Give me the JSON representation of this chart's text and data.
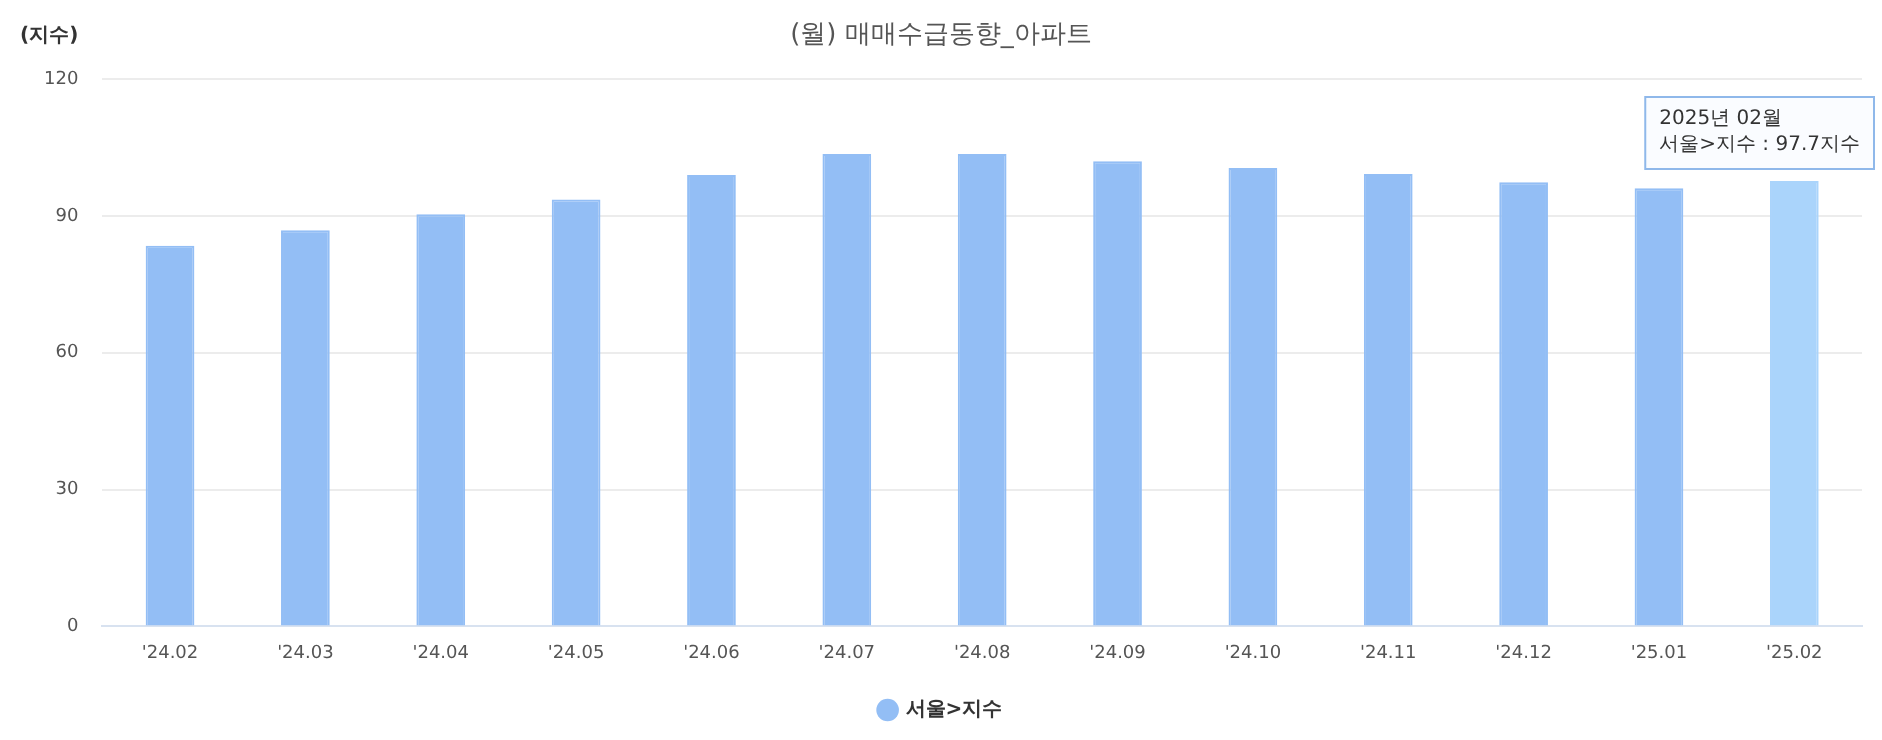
{
  "chart_data": {
    "type": "bar",
    "title": "(월) 매매수급동향_아파트",
    "ylabel": "(지수)",
    "categories": [
      "'24.02",
      "'24.03",
      "'24.04",
      "'24.05",
      "'24.06",
      "'24.07",
      "'24.08",
      "'24.09",
      "'24.10",
      "'24.11",
      "'24.12",
      "'25.01",
      "'25.02"
    ],
    "series": [
      {
        "name": "서울>지수",
        "color": "#93bef5",
        "colors": [
          "#93bef5",
          "#93bef5",
          "#93bef5",
          "#93bef5",
          "#93bef5",
          "#93bef5",
          "#93bef5",
          "#93bef5",
          "#93bef5",
          "#93bef5",
          "#93bef5",
          "#93bef5",
          "#aad4fb"
        ],
        "values": [
          83.5,
          86.9,
          90.4,
          93.6,
          99.0,
          103.6,
          103.6,
          102.0,
          100.5,
          99.2,
          97.4,
          96.1,
          97.7
        ]
      }
    ],
    "ylim": [
      0,
      120
    ],
    "yticks": [
      0,
      30,
      60,
      90,
      120
    ],
    "grid": "y",
    "legend": "bottom",
    "annotations": [
      {
        "text": "2025년 02월\n서울>지수 : 97.7지수",
        "x": "'25.02",
        "y": 97.7
      }
    ]
  }
}
